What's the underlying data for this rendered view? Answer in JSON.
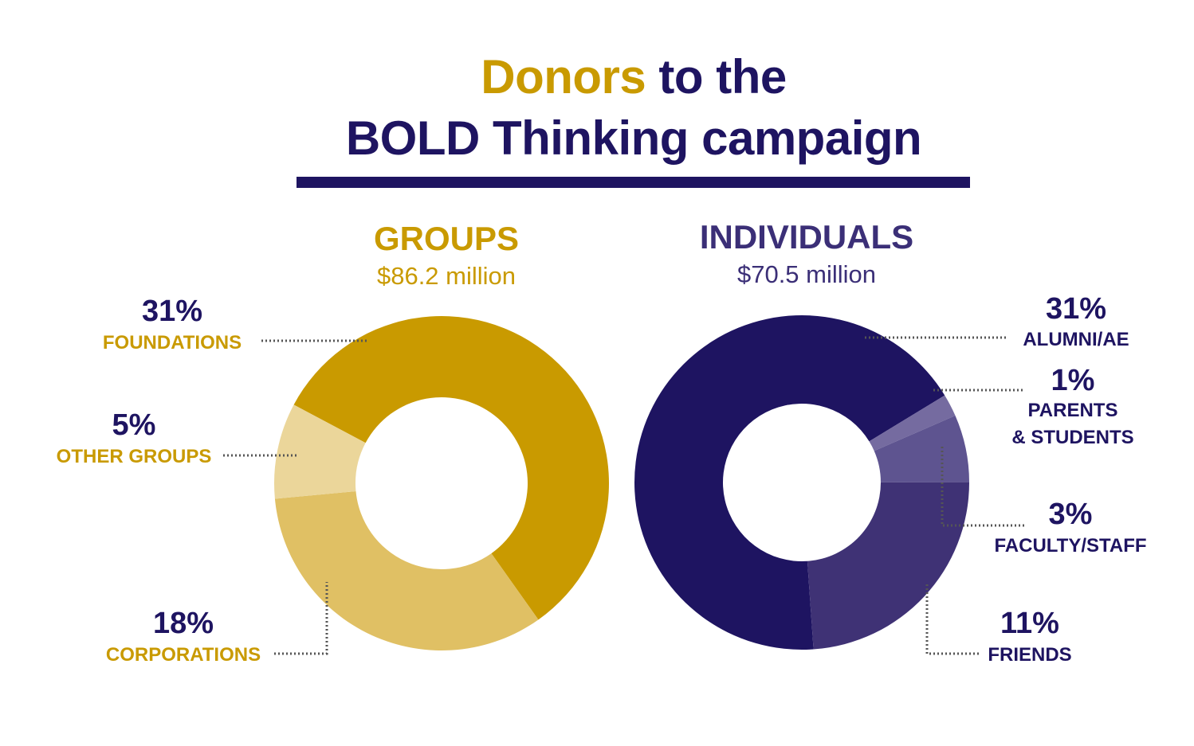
{
  "title": {
    "line1_highlight": "Donors",
    "line1_rest": " to the",
    "line2": "BOLD Thinking campaign"
  },
  "colors": {
    "navy": "#1e1461",
    "gold": "#c99a00"
  },
  "chart_data": [
    {
      "type": "pie",
      "variant": "donut",
      "title": "GROUPS",
      "subtitle": "$86.2 million",
      "series": [
        {
          "name": "FOUNDATIONS",
          "value": 31,
          "label": "31%",
          "color": "#c99a00"
        },
        {
          "name": "CORPORATIONS",
          "value": 18,
          "label": "18%",
          "color": "#e0c064"
        },
        {
          "name": "OTHER GROUPS",
          "value": 5,
          "label": "5%",
          "color": "#ebd69a"
        }
      ]
    },
    {
      "type": "pie",
      "variant": "donut",
      "title": "INDIVIDUALS",
      "subtitle": "$70.5 million",
      "series": [
        {
          "name": "ALUMNI/AE",
          "value": 31,
          "label": "31%",
          "color": "#1e1461"
        },
        {
          "name": "PARENTS\n& STUDENTS",
          "value": 1,
          "label": "1%",
          "color": "#756ba0"
        },
        {
          "name": "FACULTY/STAFF",
          "value": 3,
          "label": "3%",
          "color": "#5e5490"
        },
        {
          "name": "FRIENDS",
          "value": 11,
          "label": "11%",
          "color": "#3f3275"
        }
      ]
    }
  ]
}
